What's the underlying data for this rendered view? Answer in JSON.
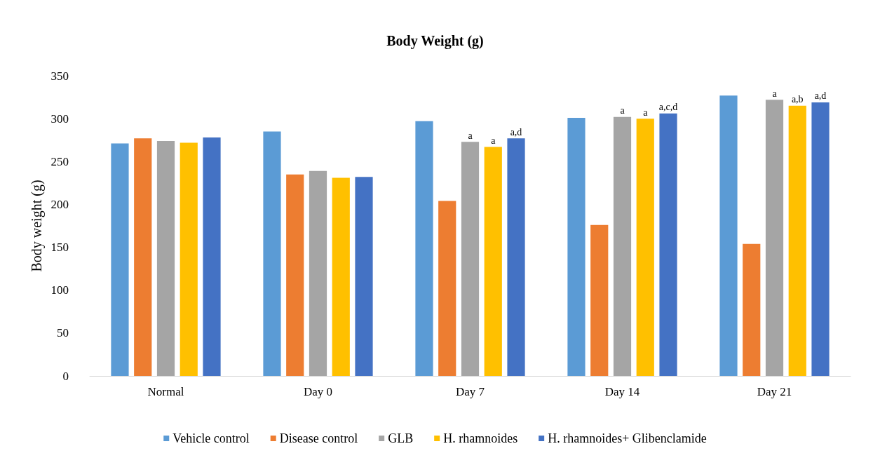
{
  "chart_data": {
    "type": "bar",
    "title": "Body Weight (g)",
    "ylabel": "Body weight (g)",
    "categories": [
      "Normal",
      "Day 0",
      "Day 7",
      "Day 14",
      "Day 21"
    ],
    "series": [
      {
        "name": "Vehicle control",
        "color": "#5b9bd5",
        "values": [
          271,
          285,
          297,
          301,
          327
        ]
      },
      {
        "name": "Disease control",
        "color": "#ed7d31",
        "values": [
          277,
          235,
          204,
          176,
          154
        ]
      },
      {
        "name": "GLB",
        "color": "#a5a5a5",
        "values": [
          274,
          239,
          273,
          302,
          322
        ],
        "value_labels": [
          null,
          null,
          "a",
          "a",
          "a"
        ]
      },
      {
        "name": "H. rhamnoides",
        "color": "#ffc000",
        "values": [
          272,
          231,
          267,
          300,
          315
        ],
        "value_labels": [
          null,
          null,
          "a",
          "a",
          "a,b"
        ]
      },
      {
        "name": "H. rhamnoides+ Glibenclamide",
        "color": "#4472c4",
        "values": [
          278,
          232,
          277,
          306,
          319
        ],
        "value_labels": [
          null,
          null,
          "a,d",
          "a,c,d",
          "a,d"
        ]
      }
    ],
    "ylim": [
      0,
      350
    ],
    "yticks": [
      0,
      50,
      100,
      150,
      200,
      250,
      300,
      350
    ],
    "grid": false,
    "legend": "bottom"
  }
}
